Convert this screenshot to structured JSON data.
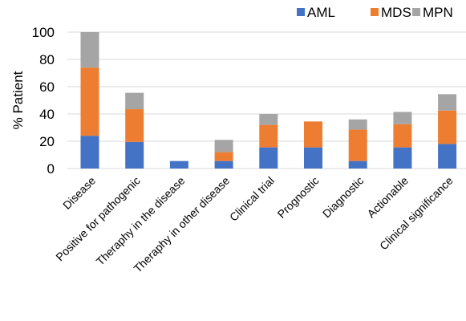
{
  "chart_data": {
    "type": "bar",
    "stacked": true,
    "title": "",
    "xlabel": "",
    "ylabel": "% Patient",
    "ylim": [
      0,
      100
    ],
    "yticks": [
      0,
      20,
      40,
      60,
      80,
      100
    ],
    "grid": true,
    "legend_position": "top-right",
    "categories": [
      "Disease",
      "Positive for pathogenic",
      "Theraphy in the disease",
      "Theraphy in other disease",
      "Clinical trial",
      "Prognostic",
      "Diagnostic",
      "Actionable",
      "Clinical significance"
    ],
    "series": [
      {
        "name": "AML",
        "color": "#4472c4",
        "values": [
          24,
          19.5,
          5.5,
          5.5,
          15.5,
          15.5,
          5.5,
          15.5,
          18
        ]
      },
      {
        "name": "MDS",
        "color": "#ed7d31",
        "values": [
          50,
          24,
          0,
          6.5,
          16.5,
          19,
          23,
          17,
          24.5
        ]
      },
      {
        "name": "MPN",
        "color": "#a5a5a5",
        "values": [
          26,
          12,
          0,
          9,
          8,
          0,
          7.5,
          9,
          12
        ]
      }
    ]
  }
}
